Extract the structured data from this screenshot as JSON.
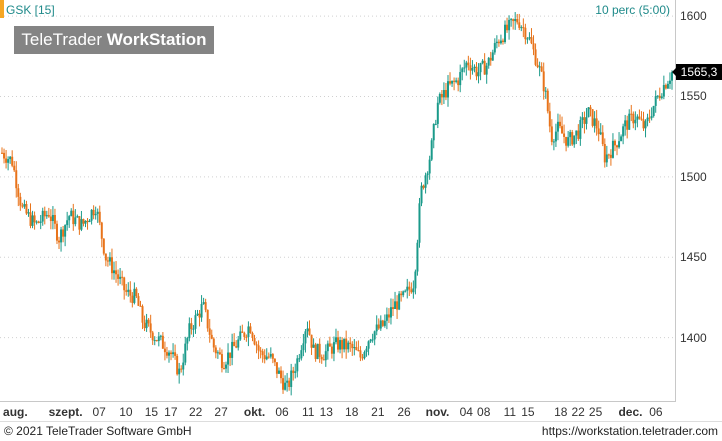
{
  "header": {
    "symbol": "GSK [15]",
    "interval": "10 perc (5:00)",
    "watermark_brand": "TeleTrader ",
    "watermark_product": "WorkStation"
  },
  "last_price": {
    "label": "1565,3",
    "value": 1565.3
  },
  "footer": {
    "copyright": "© 2021 TeleTrader Software GmbH",
    "link": "https://workstation.teletrader.com"
  },
  "colors": {
    "up": "#1a9a8a",
    "down": "#e8731a",
    "grid": "#d0d0d0",
    "accent": "#f5a623"
  },
  "chart_data": {
    "type": "candlestick",
    "ylim": [
      1360,
      1610
    ],
    "y_ticks": [
      1600,
      1550,
      1500,
      1450,
      1400
    ],
    "y_tick_labels": [
      "1600",
      "1550",
      "1500",
      "1450",
      "1400"
    ],
    "x_range": [
      0,
      100
    ],
    "x_ticks": [
      {
        "label": "aug.",
        "pos": 2,
        "month": true
      },
      {
        "label": "szept.",
        "pos": 9.5,
        "month": true
      },
      {
        "label": "07",
        "pos": 14.5
      },
      {
        "label": "10",
        "pos": 18.5
      },
      {
        "label": "15",
        "pos": 22.3
      },
      {
        "label": "17",
        "pos": 25.2
      },
      {
        "label": "22",
        "pos": 28.9
      },
      {
        "label": "27",
        "pos": 32.7
      },
      {
        "label": "okt.",
        "pos": 37.7,
        "month": true
      },
      {
        "label": "06",
        "pos": 41.8
      },
      {
        "label": "11",
        "pos": 45.7
      },
      {
        "label": "13",
        "pos": 48.4
      },
      {
        "label": "18",
        "pos": 52.2
      },
      {
        "label": "21",
        "pos": 56.1
      },
      {
        "label": "26",
        "pos": 60
      },
      {
        "label": "nov.",
        "pos": 65,
        "month": true
      },
      {
        "label": "04",
        "pos": 69.3
      },
      {
        "label": "08",
        "pos": 71.9
      },
      {
        "label": "11",
        "pos": 75.8
      },
      {
        "label": "15",
        "pos": 78.5
      },
      {
        "label": "18",
        "pos": 83.4
      },
      {
        "label": "22",
        "pos": 86
      },
      {
        "label": "25",
        "pos": 88.6
      },
      {
        "label": "dec.",
        "pos": 93.8,
        "month": true
      },
      {
        "label": "06",
        "pos": 97.6
      }
    ],
    "price_path": [
      [
        0,
        1515
      ],
      [
        1.5,
        1510
      ],
      [
        3,
        1480
      ],
      [
        5,
        1470
      ],
      [
        7,
        1478
      ],
      [
        8.5,
        1462
      ],
      [
        10,
        1476
      ],
      [
        12,
        1470
      ],
      [
        14,
        1482
      ],
      [
        15.5,
        1450
      ],
      [
        17,
        1440
      ],
      [
        18.5,
        1428
      ],
      [
        20,
        1425
      ],
      [
        21,
        1410
      ],
      [
        23,
        1400
      ],
      [
        25,
        1392
      ],
      [
        26.5,
        1378
      ],
      [
        28,
        1405
      ],
      [
        30,
        1420
      ],
      [
        31.5,
        1395
      ],
      [
        33,
        1385
      ],
      [
        35,
        1396
      ],
      [
        37,
        1408
      ],
      [
        38.5,
        1390
      ],
      [
        40,
        1388
      ],
      [
        41.5,
        1376
      ],
      [
        42.5,
        1368
      ],
      [
        44,
        1385
      ],
      [
        45.5,
        1410
      ],
      [
        46.5,
        1392
      ],
      [
        48,
        1390
      ],
      [
        50,
        1396
      ],
      [
        52,
        1394
      ],
      [
        53.5,
        1388
      ],
      [
        55,
        1402
      ],
      [
        57,
        1408
      ],
      [
        58.5,
        1420
      ],
      [
        60,
        1425
      ],
      [
        61.5,
        1435
      ],
      [
        62.5,
        1490
      ],
      [
        64,
        1515
      ],
      [
        65,
        1545
      ],
      [
        66.5,
        1555
      ],
      [
        68,
        1560
      ],
      [
        69.5,
        1572
      ],
      [
        71,
        1565
      ],
      [
        72.5,
        1570
      ],
      [
        74,
        1585
      ],
      [
        75.5,
        1592
      ],
      [
        77,
        1598
      ],
      [
        78.5,
        1588
      ],
      [
        80,
        1570
      ],
      [
        81,
        1555
      ],
      [
        82,
        1525
      ],
      [
        83,
        1530
      ],
      [
        84.5,
        1522
      ],
      [
        86,
        1528
      ],
      [
        87.5,
        1540
      ],
      [
        89,
        1530
      ],
      [
        90,
        1512
      ],
      [
        91.5,
        1520
      ],
      [
        93,
        1532
      ],
      [
        94.5,
        1538
      ],
      [
        96,
        1530
      ],
      [
        97,
        1542
      ],
      [
        98.5,
        1555
      ],
      [
        100,
        1565
      ]
    ]
  }
}
